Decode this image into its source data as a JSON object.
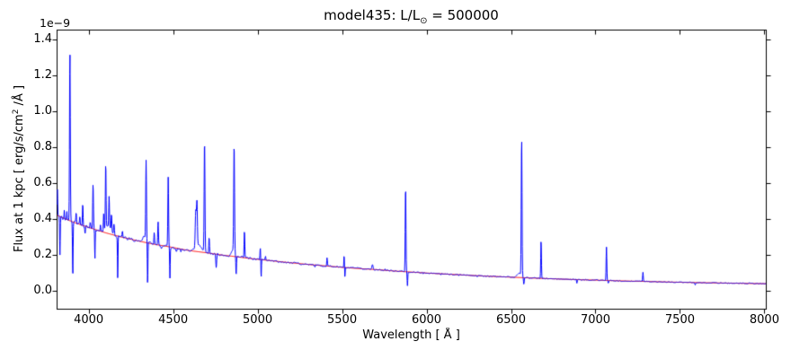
{
  "chart_data": {
    "type": "line",
    "title": "model435: L/L⊙ = 500000",
    "title_parts": {
      "prefix": "model435: L/L",
      "subscript": "⊙",
      "suffix": " = 500000"
    },
    "xlabel": "Wavelength [ Å ]",
    "ylabel": "Flux at 1 kpc [ erg/s/cm² /Å ]",
    "ylabel_parts": {
      "prefix": "Flux at 1 kpc [ erg/s/cm",
      "superscript": "2",
      "suffix": " /Å ]"
    },
    "offset_text": "1e−9",
    "flux_unit_scale": "1e-9",
    "grid": false,
    "legend": null,
    "xlim": [
      3813,
      8011
    ],
    "ylim": [
      -0.105,
      1.455
    ],
    "xticks": [
      4000,
      4500,
      5000,
      5500,
      6000,
      6500,
      7000,
      7500,
      8000
    ],
    "xtick_labels": [
      "4000",
      "4500",
      "5000",
      "5500",
      "6000",
      "6500",
      "7000",
      "7500",
      "8000"
    ],
    "yticks": [
      0.0,
      0.2,
      0.4,
      0.6,
      0.8,
      1.0,
      1.2,
      1.4
    ],
    "ytick_labels": [
      "0.0",
      "0.2",
      "0.4",
      "0.6",
      "0.8",
      "1.0",
      "1.2",
      "1.4"
    ],
    "series": [
      {
        "name": "spectrum",
        "color": "#0000ff",
        "description": "blue model spectrum: continuum plus narrow emission and absorption lines, flux in 1e-9 erg/s/cm2/A",
        "line_columns": [
          "center_wavelength_A",
          "amplitude_above_continuum_1e-9",
          "sigma_A"
        ],
        "lines": [
          [
            3815,
            0.15,
            1.5
          ],
          [
            3830,
            -0.215,
            1.8
          ],
          [
            3856,
            0.045,
            1.5
          ],
          [
            3871,
            0.05,
            1.5
          ],
          [
            3889,
            0.945,
            2.2
          ],
          [
            3906,
            -0.3,
            1.8
          ],
          [
            3926,
            0.06,
            2.0
          ],
          [
            3948,
            0.04,
            1.8
          ],
          [
            3965,
            0.125,
            2.0
          ],
          [
            3979,
            -0.045,
            2.0
          ],
          [
            4009,
            0.035,
            2.0
          ],
          [
            4026,
            0.255,
            2.2
          ],
          [
            4037,
            -0.165,
            1.6
          ],
          [
            4070,
            0.04,
            2.0
          ],
          [
            4089,
            0.1,
            2.0
          ],
          [
            4101,
            0.36,
            2.0
          ],
          [
            4115,
            0.05,
            14
          ],
          [
            4121,
            0.17,
            2.0
          ],
          [
            4135,
            0.1,
            2.2
          ],
          [
            4150,
            0.06,
            2.5
          ],
          [
            4172,
            -0.235,
            1.6
          ],
          [
            4200,
            0.035,
            2.0
          ],
          [
            4330,
            0.03,
            10
          ],
          [
            4340,
            0.44,
            2.2
          ],
          [
            4349,
            -0.24,
            1.7
          ],
          [
            4388,
            0.07,
            2.0
          ],
          [
            4411,
            0.13,
            2.0
          ],
          [
            4430,
            -0.02,
            3.0
          ],
          [
            4471,
            0.385,
            2.2
          ],
          [
            4481,
            -0.17,
            1.6
          ],
          [
            4520,
            -0.02,
            3.0
          ],
          [
            4546,
            -0.02,
            3.0
          ],
          [
            4634,
            0.2,
            3.0
          ],
          [
            4641,
            0.24,
            2.6
          ],
          [
            4650,
            0.04,
            18
          ],
          [
            4686,
            0.625,
            2.3
          ],
          [
            4713,
            0.085,
            2.0
          ],
          [
            4755,
            -0.075,
            2.5
          ],
          [
            4855,
            0.035,
            10
          ],
          [
            4861,
            0.6,
            2.4
          ],
          [
            4873,
            -0.11,
            1.8
          ],
          [
            4922,
            0.148,
            2.0
          ],
          [
            5016,
            0.068,
            2.0
          ],
          [
            5021,
            -0.108,
            1.6
          ],
          [
            5047,
            0.022,
            2.0
          ],
          [
            5340,
            -0.012,
            2.0
          ],
          [
            5411,
            0.047,
            2.0
          ],
          [
            5512,
            0.066,
            1.5
          ],
          [
            5517,
            -0.06,
            1.3
          ],
          [
            5680,
            0.026,
            3.5
          ],
          [
            5755,
            0.01,
            2.0
          ],
          [
            5876,
            0.477,
            2.1
          ],
          [
            5887,
            -0.075,
            1.7
          ],
          [
            5980,
            -0.008,
            2.0
          ],
          [
            6085,
            -0.008,
            2.0
          ],
          [
            6190,
            -0.007,
            2.0
          ],
          [
            6300,
            -0.007,
            2.0
          ],
          [
            6548,
            0.025,
            12
          ],
          [
            6563,
            0.775,
            2.3
          ],
          [
            6576,
            -0.04,
            2.0
          ],
          [
            6678,
            0.212,
            2.0
          ],
          [
            6890,
            -0.02,
            1.8
          ],
          [
            7065,
            0.187,
            2.0
          ],
          [
            7076,
            -0.015,
            2.0
          ],
          [
            7281,
            0.051,
            2.0
          ],
          [
            7590,
            -0.012,
            1.8
          ]
        ],
        "noise": {
          "base_amplitude": 0.008,
          "decay_scale": 1400,
          "floor": 0.0018
        }
      },
      {
        "name": "continuum_fit",
        "color": "#ff0000",
        "description": "smooth red continuum, flux in 1e-9 erg/s/cm2/A",
        "points": [
          [
            3800,
            0.425
          ],
          [
            3850,
            0.405
          ],
          [
            3900,
            0.385
          ],
          [
            3950,
            0.368
          ],
          [
            4000,
            0.352
          ],
          [
            4050,
            0.337
          ],
          [
            4100,
            0.322
          ],
          [
            4150,
            0.309
          ],
          [
            4200,
            0.297
          ],
          [
            4250,
            0.286
          ],
          [
            4300,
            0.275
          ],
          [
            4350,
            0.265
          ],
          [
            4400,
            0.256
          ],
          [
            4450,
            0.248
          ],
          [
            4500,
            0.24
          ],
          [
            4550,
            0.23
          ],
          [
            4600,
            0.222
          ],
          [
            4650,
            0.216
          ],
          [
            4700,
            0.21
          ],
          [
            4750,
            0.203
          ],
          [
            4800,
            0.196
          ],
          [
            4850,
            0.191
          ],
          [
            4900,
            0.185
          ],
          [
            4950,
            0.179
          ],
          [
            5000,
            0.174
          ],
          [
            5100,
            0.164
          ],
          [
            5200,
            0.154
          ],
          [
            5300,
            0.145
          ],
          [
            5400,
            0.137
          ],
          [
            5500,
            0.129
          ],
          [
            5600,
            0.122
          ],
          [
            5700,
            0.1165
          ],
          [
            5800,
            0.109
          ],
          [
            5900,
            0.103
          ],
          [
            6000,
            0.097
          ],
          [
            6100,
            0.092
          ],
          [
            6200,
            0.087
          ],
          [
            6300,
            0.082
          ],
          [
            6400,
            0.078
          ],
          [
            6500,
            0.074
          ],
          [
            6600,
            0.07
          ],
          [
            6700,
            0.0665
          ],
          [
            6800,
            0.063
          ],
          [
            6900,
            0.06
          ],
          [
            7000,
            0.0575
          ],
          [
            7100,
            0.0545
          ],
          [
            7200,
            0.052
          ],
          [
            7300,
            0.05
          ],
          [
            7400,
            0.0475
          ],
          [
            7500,
            0.0455
          ],
          [
            7600,
            0.0435
          ],
          [
            7700,
            0.042
          ],
          [
            7800,
            0.0405
          ],
          [
            7900,
            0.039
          ],
          [
            8000,
            0.0375
          ]
        ]
      }
    ],
    "colors": {
      "spectrum": "#0000ff",
      "continuum": "#ff0000",
      "axes": "#000000",
      "background": "#ffffff"
    }
  }
}
